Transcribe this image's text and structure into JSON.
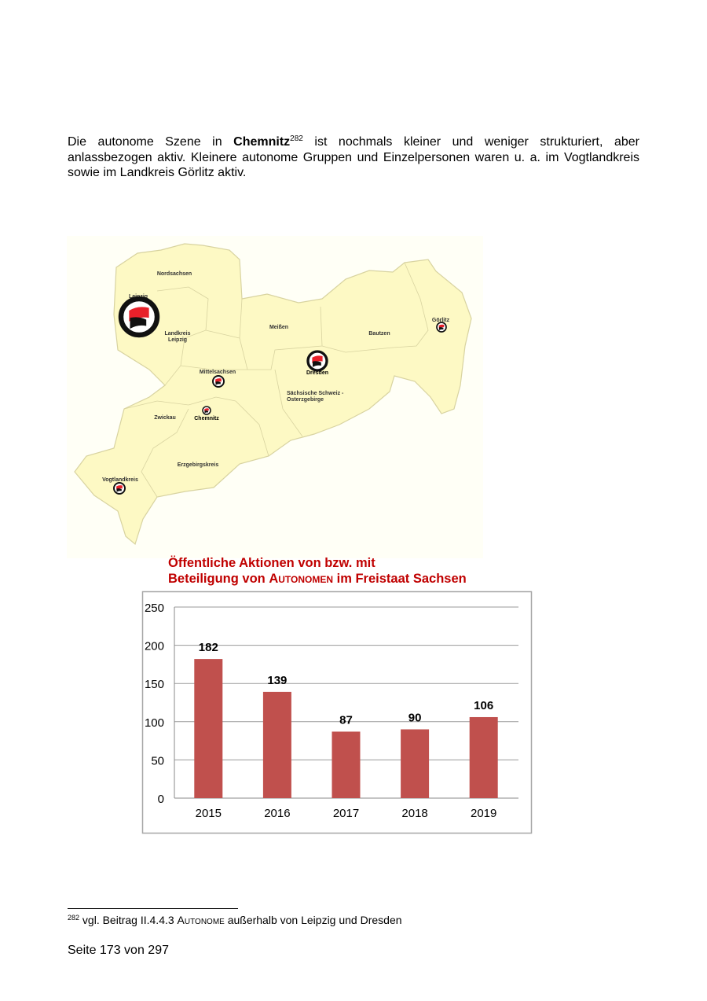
{
  "paragraph": {
    "before": "Die autonome Szene in ",
    "city": "Chemnitz",
    "footnote_ref": "282",
    "after": " ist nochmals kleiner und weniger strukturiert, aber anlassbezogen aktiv. Kleinere autonome Gruppen und Einzelpersonen waren u.  a. im Vogtlandkreis sowie im Landkreis Görlitz aktiv."
  },
  "map": {
    "fill_color": "#fdf9c4",
    "regions": {
      "nordsachsen": "Nordsachsen",
      "leipzig": "Leipzig",
      "landkreis_leipzig_1": "Landkreis",
      "landkreis_leipzig_2": "Leipzig",
      "meissen": "Meißen",
      "bautzen": "Bautzen",
      "goerlitz": "Görlitz",
      "mittelsachsen": "Mittelsachsen",
      "dresden": "Dresden",
      "saechsische_schweiz_1": "Sächsische Schweiz -",
      "saechsische_schweiz_2": "Osterzgebirge",
      "zwickau": "Zwickau",
      "chemnitz": "Chemnitz",
      "erzgebirgskreis": "Erzgebirgskreis",
      "vogtlandkreis": "Vogtlandkreis"
    },
    "markers": [
      "Leipzig",
      "Dresden",
      "Mittelsachsen",
      "Chemnitz",
      "Görlitz",
      "Vogtlandkreis"
    ],
    "marker_icon": "antifa-flag-icon"
  },
  "chart_title": {
    "line1": "Öffentliche Aktionen von bzw. mit",
    "line2_a": "Beteiligung von ",
    "line2_b": "Autonomen",
    "line2_c": " im Freistaat Sachsen"
  },
  "chart_data": {
    "type": "bar",
    "title": "Öffentliche Aktionen von bzw. mit Beteiligung von AUTONOMEN im Freistaat Sachsen",
    "categories": [
      "2015",
      "2016",
      "2017",
      "2018",
      "2019"
    ],
    "values": [
      182,
      139,
      87,
      90,
      106
    ],
    "ylim": [
      0,
      250
    ],
    "yticks": [
      0,
      50,
      100,
      150,
      200,
      250
    ],
    "grid": true,
    "bar_color": "#c0504d",
    "data_labels": true
  },
  "footnote": {
    "number": "282",
    "text_a": " vgl. Beitrag II.4.4.3 ",
    "text_b": "Autonome",
    "text_c": " außerhalb von Leipzig und Dresden"
  },
  "page_number": "Seite 173 von 297"
}
